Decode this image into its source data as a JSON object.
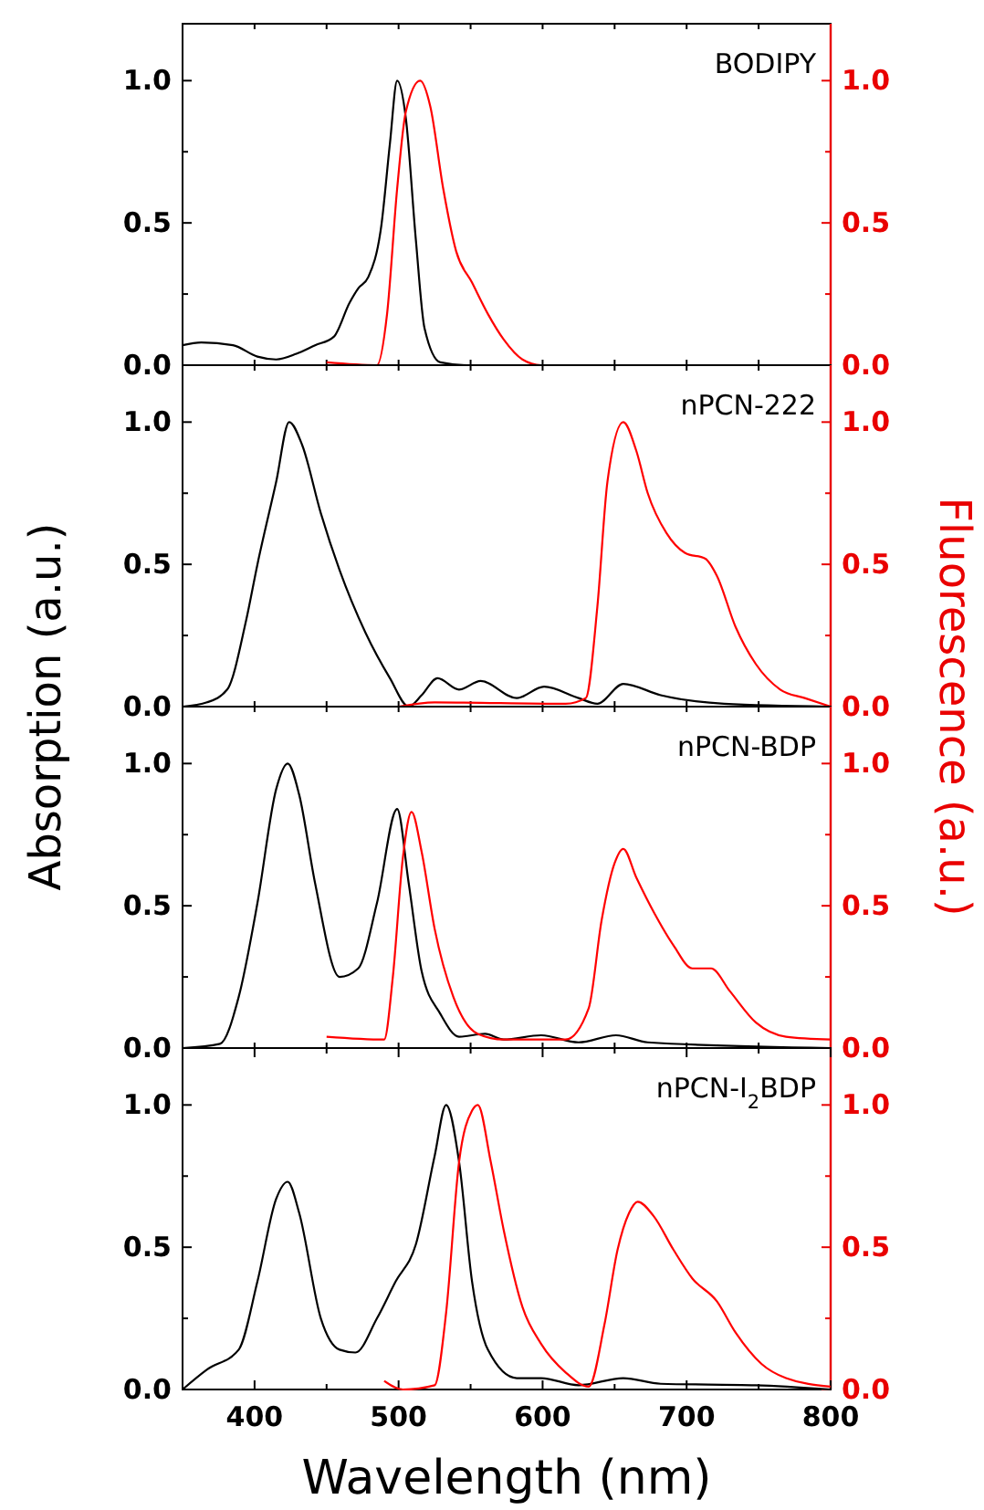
{
  "chart_data": [
    {
      "type": "line",
      "title": "BODIPY",
      "xlim": [
        350,
        800
      ],
      "xticks": [
        {
          "value": 400,
          "label": null
        },
        {
          "value": 450,
          "label": null
        },
        {
          "value": 500,
          "label": null
        },
        {
          "value": 550,
          "label": null
        },
        {
          "value": 600,
          "label": null
        },
        {
          "value": 650,
          "label": null
        },
        {
          "value": 700,
          "label": null
        },
        {
          "value": 750,
          "label": null
        }
      ],
      "ylim": [
        0,
        1.2
      ],
      "yticks": [
        {
          "value": 0,
          "label": "0.0"
        },
        {
          "value": 0.25,
          "label": null
        },
        {
          "value": 0.5,
          "label": "0.5"
        },
        {
          "value": 0.75,
          "label": null
        },
        {
          "value": 1.0,
          "label": "1.0"
        }
      ],
      "y2lim": [
        0,
        1.2
      ],
      "y2ticks": [
        {
          "value": 0,
          "label": "0.0"
        },
        {
          "value": 0.25,
          "label": null
        },
        {
          "value": 0.5,
          "label": "0.5"
        },
        {
          "value": 0.75,
          "label": null
        },
        {
          "value": 1.0,
          "label": "1.0"
        }
      ],
      "tick_labels": "y",
      "line_style": "solid",
      "series": [
        {
          "color": "#000000",
          "x": [
            350,
            363,
            385,
            402,
            415,
            429,
            442,
            455,
            466,
            472,
            479,
            488,
            494,
            499,
            505,
            512,
            518,
            529,
            547,
            800
          ],
          "values": [
            0.07,
            0.08,
            0.07,
            0.03,
            0.02,
            0.04,
            0.07,
            0.1,
            0.22,
            0.27,
            0.31,
            0.49,
            0.78,
            1.0,
            0.87,
            0.44,
            0.13,
            0.01,
            0,
            0
          ]
        },
        {
          "color": "#ff0000",
          "axis": "y2",
          "x": [
            450,
            485,
            492,
            499,
            505,
            515,
            522,
            531,
            540,
            551,
            562,
            573,
            586,
            599,
            800
          ],
          "values": [
            0.01,
            0,
            0.18,
            0.62,
            0.89,
            1.0,
            0.91,
            0.62,
            0.4,
            0.29,
            0.18,
            0.09,
            0.02,
            0,
            0
          ]
        }
      ]
    },
    {
      "type": "line",
      "title": "nPCN-222",
      "ylabel": "Absorption (a.u.)",
      "y2label": "Fluorescence (a.u.)",
      "xlim": [
        350,
        800
      ],
      "xticks": [
        {
          "value": 400,
          "label": null
        },
        {
          "value": 450,
          "label": null
        },
        {
          "value": 500,
          "label": null
        },
        {
          "value": 550,
          "label": null
        },
        {
          "value": 600,
          "label": null
        },
        {
          "value": 650,
          "label": null
        },
        {
          "value": 700,
          "label": null
        },
        {
          "value": 750,
          "label": null
        }
      ],
      "ylim": [
        0,
        1.2
      ],
      "yticks": [
        {
          "value": 0,
          "label": "0.0"
        },
        {
          "value": 0.25,
          "label": null
        },
        {
          "value": 0.5,
          "label": "0.5"
        },
        {
          "value": 0.75,
          "label": null
        },
        {
          "value": 1.0,
          "label": "1.0"
        }
      ],
      "y2lim": [
        0,
        1.2
      ],
      "y2ticks": [
        {
          "value": 0,
          "label": "0.0"
        },
        {
          "value": 0.25,
          "label": null
        },
        {
          "value": 0.5,
          "label": "0.5"
        },
        {
          "value": 0.75,
          "label": null
        },
        {
          "value": 1.0,
          "label": "1.0"
        }
      ],
      "tick_labels": "y",
      "line_style": "solid",
      "series": [
        {
          "color": "#000000",
          "x": [
            350,
            367,
            381,
            394,
            402,
            415,
            424,
            433,
            446,
            459,
            477,
            494,
            507,
            516,
            527,
            542,
            557,
            582,
            601,
            625,
            638,
            656,
            682,
            726,
            800
          ],
          "values": [
            0,
            0.015,
            0.06,
            0.3,
            0.5,
            0.79,
            1.0,
            0.92,
            0.68,
            0.48,
            0.26,
            0.1,
            0,
            0.04,
            0.1,
            0.06,
            0.09,
            0.03,
            0.07,
            0.03,
            0.01,
            0.08,
            0.04,
            0.01,
            0
          ]
        },
        {
          "color": "#ff0000",
          "axis": "y2",
          "x": [
            500,
            525,
            616,
            630,
            638,
            645,
            656,
            665,
            673,
            686,
            699,
            713,
            721,
            734,
            748,
            765,
            782,
            800
          ],
          "values": [
            0,
            0.015,
            0.01,
            0.03,
            0.35,
            0.79,
            1.0,
            0.9,
            0.75,
            0.61,
            0.54,
            0.52,
            0.46,
            0.28,
            0.15,
            0.06,
            0.03,
            0
          ]
        }
      ]
    },
    {
      "type": "line",
      "title": "nPCN-BDP",
      "xlim": [
        350,
        800
      ],
      "xticks": [
        {
          "value": 400,
          "label": null
        },
        {
          "value": 450,
          "label": null
        },
        {
          "value": 500,
          "label": null
        },
        {
          "value": 550,
          "label": null
        },
        {
          "value": 600,
          "label": null
        },
        {
          "value": 650,
          "label": null
        },
        {
          "value": 700,
          "label": null
        },
        {
          "value": 750,
          "label": null
        }
      ],
      "ylim": [
        0,
        1.2
      ],
      "yticks": [
        {
          "value": 0,
          "label": "0.0"
        },
        {
          "value": 0.25,
          "label": null
        },
        {
          "value": 0.5,
          "label": "0.5"
        },
        {
          "value": 0.75,
          "label": null
        },
        {
          "value": 1.0,
          "label": "1.0"
        }
      ],
      "y2lim": [
        0,
        1.2
      ],
      "y2ticks": [
        {
          "value": 0,
          "label": "0.0"
        },
        {
          "value": 0.25,
          "label": null
        },
        {
          "value": 0.5,
          "label": "0.5"
        },
        {
          "value": 0.75,
          "label": null
        },
        {
          "value": 1.0,
          "label": "1.0"
        }
      ],
      "tick_labels": "y",
      "line_style": "solid",
      "series": [
        {
          "color": "#000000",
          "x": [
            350,
            376,
            389,
            402,
            415,
            423,
            431,
            442,
            459,
            472,
            485,
            499,
            507,
            516,
            529,
            542,
            560,
            573,
            599,
            625,
            651,
            673,
            800
          ],
          "values": [
            0,
            0.015,
            0.18,
            0.51,
            0.91,
            1.0,
            0.89,
            0.58,
            0.25,
            0.28,
            0.51,
            0.84,
            0.58,
            0.27,
            0.12,
            0.04,
            0.05,
            0.03,
            0.045,
            0.02,
            0.045,
            0.02,
            0
          ]
        },
        {
          "color": "#ff0000",
          "axis": "y2",
          "x": [
            450,
            490,
            496,
            503,
            509,
            516,
            525,
            538,
            555,
            573,
            616,
            632,
            641,
            650,
            656,
            665,
            678,
            691,
            704,
            717,
            730,
            748,
            769,
            800
          ],
          "values": [
            0.04,
            0.03,
            0.25,
            0.67,
            0.83,
            0.69,
            0.42,
            0.18,
            0.05,
            0.03,
            0.03,
            0.14,
            0.45,
            0.65,
            0.7,
            0.6,
            0.47,
            0.36,
            0.28,
            0.28,
            0.2,
            0.09,
            0.04,
            0.03
          ]
        }
      ]
    },
    {
      "type": "line",
      "title": "nPCN-I$_{2}$BDP",
      "xlabel": "Wavelength (nm)",
      "xlim": [
        350,
        800
      ],
      "xticks": [
        400,
        {
          "value": 450,
          "label": null
        },
        500,
        {
          "value": 550,
          "label": null
        },
        600,
        {
          "value": 650,
          "label": null
        },
        700,
        {
          "value": 750,
          "label": null
        },
        800
      ],
      "ylim": [
        0,
        1.2
      ],
      "yticks": [
        {
          "value": 0,
          "label": "0.0"
        },
        {
          "value": 0.25,
          "label": null
        },
        {
          "value": 0.5,
          "label": "0.5"
        },
        {
          "value": 0.75,
          "label": null
        },
        {
          "value": 1.0,
          "label": "1.0"
        }
      ],
      "y2lim": [
        0,
        1.2
      ],
      "y2ticks": [
        {
          "value": 0,
          "label": "0.0"
        },
        {
          "value": 0.25,
          "label": null
        },
        {
          "value": 0.5,
          "label": "0.5"
        },
        {
          "value": 0.75,
          "label": null
        },
        {
          "value": 1.0,
          "label": "1.0"
        }
      ],
      "line_style": "solid",
      "series": [
        {
          "color": "#000000",
          "x": [
            350,
            367,
            389,
            402,
            415,
            423,
            431,
            446,
            459,
            470,
            485,
            498,
            512,
            525,
            533,
            542,
            551,
            562,
            582,
            599,
            625,
            656,
            682,
            748,
            800
          ],
          "values": [
            0,
            0.07,
            0.14,
            0.38,
            0.67,
            0.73,
            0.62,
            0.25,
            0.14,
            0.13,
            0.25,
            0.38,
            0.51,
            0.82,
            1.0,
            0.8,
            0.38,
            0.14,
            0.04,
            0.04,
            0.015,
            0.04,
            0.02,
            0.015,
            0
          ]
        },
        {
          "color": "#ff0000",
          "axis": "y2",
          "x": [
            490,
            503,
            525,
            533,
            542,
            551,
            555,
            564,
            573,
            586,
            599,
            616,
            632,
            643,
            652,
            660,
            666,
            677,
            691,
            704,
            721,
            734,
            752,
            769,
            800
          ],
          "values": [
            0.03,
            0,
            0.015,
            0.27,
            0.8,
            0.98,
            1.0,
            0.8,
            0.56,
            0.29,
            0.16,
            0.06,
            0.01,
            0.23,
            0.49,
            0.62,
            0.66,
            0.61,
            0.49,
            0.39,
            0.31,
            0.2,
            0.09,
            0.04,
            0.01
          ]
        }
      ]
    }
  ]
}
